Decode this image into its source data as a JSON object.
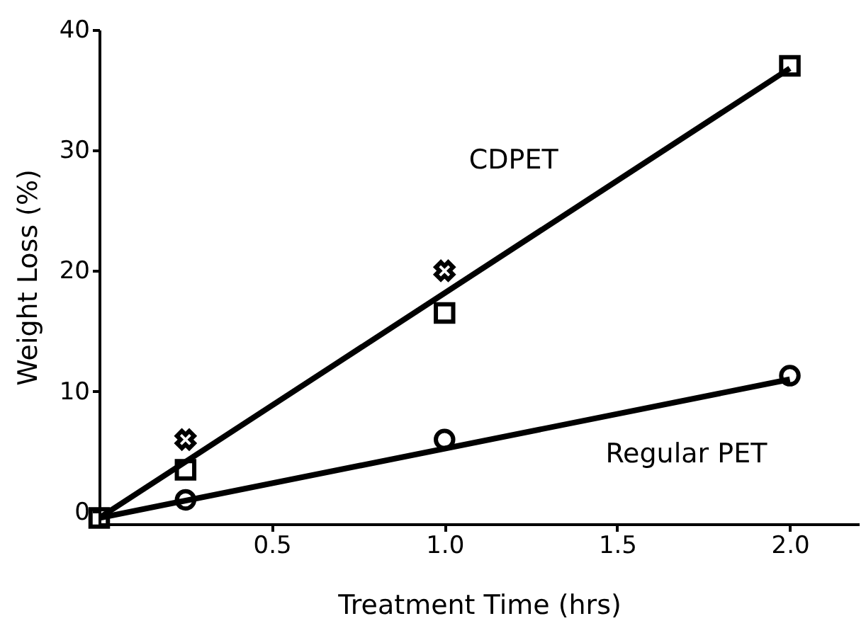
{
  "chart_data": {
    "type": "line",
    "xlabel": "Treatment  Time  (hrs)",
    "ylabel": "Weight  Loss  (%)",
    "xlim": [
      0,
      2.2
    ],
    "ylim": [
      -1,
      40
    ],
    "xticks": [
      0.5,
      {
        "value": 1,
        "label": "1.0"
      },
      1.5,
      {
        "value": 2,
        "label": "2.0"
      }
    ],
    "yticks": [
      0,
      10,
      20,
      30,
      40
    ],
    "grid": false,
    "legend": false,
    "series": [
      {
        "name": "CDPET",
        "color": "#000000",
        "marker": "none",
        "x": [
          0,
          2
        ],
        "values": [
          -0.5,
          36.8
        ]
      },
      {
        "type": "scatter",
        "color": "#000000",
        "marker": "square",
        "x": [
          0,
          0.25,
          1.0,
          2.0
        ],
        "values": [
          -0.5,
          3.5,
          16.5,
          37
        ]
      },
      {
        "type": "scatter",
        "color": "#000000",
        "marker": "cross",
        "x": [
          0.25,
          1.0
        ],
        "values": [
          6,
          20
        ]
      },
      {
        "name": "Regular PET",
        "color": "#000000",
        "marker": "none",
        "x": [
          0,
          2
        ],
        "values": [
          -0.5,
          11
        ]
      },
      {
        "type": "scatter",
        "color": "#000000",
        "marker": "circle",
        "x": [
          0.25,
          1.0,
          2.0
        ],
        "values": [
          1,
          6,
          11.3
        ]
      }
    ]
  }
}
